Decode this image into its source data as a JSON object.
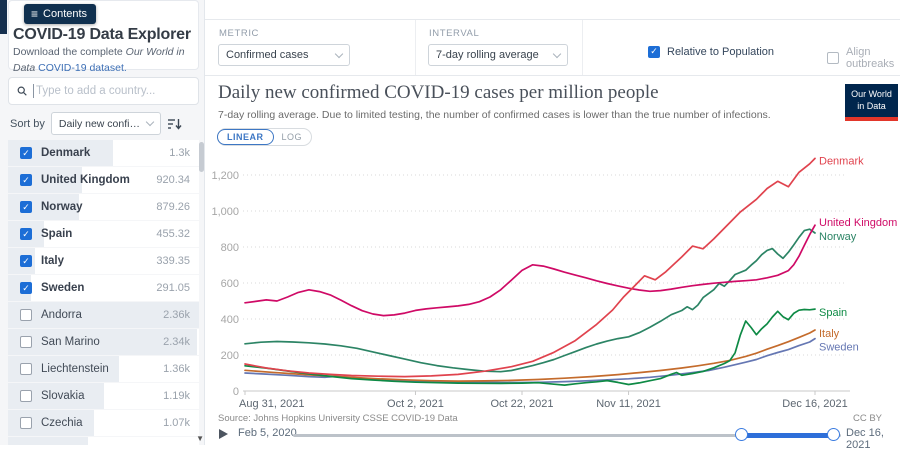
{
  "contents_button": {
    "label": "Contents"
  },
  "sidebar": {
    "title": "COVID-19 Data Explorer",
    "download": {
      "prefix": "Download the complete ",
      "em": "Our World in Data",
      "link": "COVID-19 dataset."
    },
    "search": {
      "placeholder": "Type to add a country..."
    },
    "sort": {
      "label": "Sort by",
      "value": "Daily new confirmed ..."
    },
    "countries": [
      {
        "name": "Denmark",
        "value": "1.3k",
        "checked": true,
        "bar_pct": 55
      },
      {
        "name": "United Kingdom",
        "value": "920.34",
        "checked": true,
        "bar_pct": 39
      },
      {
        "name": "Norway",
        "value": "879.26",
        "checked": true,
        "bar_pct": 37
      },
      {
        "name": "Spain",
        "value": "455.32",
        "checked": true,
        "bar_pct": 19
      },
      {
        "name": "Italy",
        "value": "339.35",
        "checked": true,
        "bar_pct": 14
      },
      {
        "name": "Sweden",
        "value": "291.05",
        "checked": true,
        "bar_pct": 12
      },
      {
        "name": "Andorra",
        "value": "2.36k",
        "checked": false,
        "bar_pct": 100
      },
      {
        "name": "San Marino",
        "value": "2.34k",
        "checked": false,
        "bar_pct": 99
      },
      {
        "name": "Liechtenstein",
        "value": "1.36k",
        "checked": false,
        "bar_pct": 58
      },
      {
        "name": "Slovakia",
        "value": "1.19k",
        "checked": false,
        "bar_pct": 50
      },
      {
        "name": "Czechia",
        "value": "1.07k",
        "checked": false,
        "bar_pct": 45
      },
      {
        "name": "",
        "value": "",
        "checked": false,
        "bar_pct": 42
      }
    ]
  },
  "controls": {
    "metric": {
      "label": "METRIC",
      "value": "Confirmed cases"
    },
    "interval": {
      "label": "INTERVAL",
      "value": "7-day rolling average"
    },
    "relative": {
      "label": "Relative to Population",
      "checked": true
    },
    "align": {
      "label": "Align outbreaks",
      "checked": false
    }
  },
  "chart": {
    "title": "Daily new confirmed COVID-19 cases per million people",
    "subtitle": "7-day rolling average. Due to limited testing, the number of confirmed cases is lower than the true number of infections.",
    "scale": {
      "linear": "LINEAR",
      "log": "LOG"
    },
    "logo": {
      "line1": "Our World",
      "line2": "in Data"
    },
    "source": "Source: Johns Hopkins University CSSE COVID-19 Data",
    "license": "CC BY",
    "timeline": {
      "start": "Feb 5, 2020",
      "end": "Dec 16, 2021"
    }
  },
  "chart_data": {
    "type": "line",
    "title": "Daily new confirmed COVID-19 cases per million people",
    "ylabel": "",
    "xlabel": "",
    "ylim": [
      0,
      1300
    ],
    "yticks": [
      0,
      200,
      400,
      600,
      800,
      1000,
      1200
    ],
    "grid": "dotted-horizontal",
    "legend_position": "line-end-labels",
    "x_range_days": 107,
    "xticks": [
      {
        "day": 0,
        "label": "Aug 31, 2021"
      },
      {
        "day": 32,
        "label": "Oct 2, 2021"
      },
      {
        "day": 52,
        "label": "Oct 22, 2021"
      },
      {
        "day": 72,
        "label": "Nov 11, 2021"
      },
      {
        "day": 107,
        "label": "Dec 16, 2021"
      }
    ],
    "series": [
      {
        "name": "Sweden",
        "color": "#6577b3",
        "label_dy": 9,
        "points": [
          [
            0,
            100
          ],
          [
            4,
            94
          ],
          [
            8,
            87
          ],
          [
            12,
            80
          ],
          [
            15,
            76
          ],
          [
            17,
            81
          ],
          [
            19,
            78
          ],
          [
            22,
            70
          ],
          [
            25,
            65
          ],
          [
            28,
            61
          ],
          [
            32,
            56
          ],
          [
            36,
            53
          ],
          [
            40,
            50
          ],
          [
            44,
            48
          ],
          [
            48,
            47
          ],
          [
            52,
            47
          ],
          [
            56,
            49
          ],
          [
            60,
            52
          ],
          [
            64,
            56
          ],
          [
            68,
            62
          ],
          [
            72,
            68
          ],
          [
            76,
            76
          ],
          [
            80,
            88
          ],
          [
            84,
            102
          ],
          [
            87,
            114
          ],
          [
            90,
            132
          ],
          [
            92,
            146
          ],
          [
            94,
            160
          ],
          [
            96,
            175
          ],
          [
            98,
            196
          ],
          [
            100,
            214
          ],
          [
            102,
            230
          ],
          [
            104,
            252
          ],
          [
            106,
            272
          ],
          [
            107,
            291
          ]
        ]
      },
      {
        "name": "Italy",
        "color": "#c46b2c",
        "label_dy": 4,
        "points": [
          [
            0,
            115
          ],
          [
            5,
            104
          ],
          [
            10,
            94
          ],
          [
            15,
            84
          ],
          [
            20,
            76
          ],
          [
            25,
            68
          ],
          [
            30,
            62
          ],
          [
            35,
            57
          ],
          [
            40,
            55
          ],
          [
            45,
            56
          ],
          [
            50,
            59
          ],
          [
            55,
            64
          ],
          [
            60,
            71
          ],
          [
            65,
            80
          ],
          [
            70,
            91
          ],
          [
            74,
            102
          ],
          [
            78,
            114
          ],
          [
            82,
            128
          ],
          [
            85,
            140
          ],
          [
            88,
            154
          ],
          [
            91,
            170
          ],
          [
            94,
            192
          ],
          [
            96,
            210
          ],
          [
            98,
            232
          ],
          [
            100,
            252
          ],
          [
            102,
            274
          ],
          [
            104,
            298
          ],
          [
            106,
            322
          ],
          [
            107,
            339
          ]
        ]
      },
      {
        "name": "Spain",
        "color": "#0e8a45",
        "label_dy": 4,
        "points": [
          [
            0,
            140
          ],
          [
            4,
            127
          ],
          [
            8,
            111
          ],
          [
            12,
            95
          ],
          [
            16,
            81
          ],
          [
            20,
            69
          ],
          [
            24,
            61
          ],
          [
            28,
            54
          ],
          [
            32,
            49
          ],
          [
            36,
            46
          ],
          [
            40,
            44
          ],
          [
            44,
            43
          ],
          [
            48,
            42
          ],
          [
            52,
            44
          ],
          [
            55,
            46
          ],
          [
            58,
            38
          ],
          [
            60,
            33
          ],
          [
            62,
            40
          ],
          [
            64,
            46
          ],
          [
            66,
            51
          ],
          [
            68,
            58
          ],
          [
            70,
            48
          ],
          [
            72,
            36
          ],
          [
            74,
            45
          ],
          [
            76,
            57
          ],
          [
            78,
            69
          ],
          [
            80,
            93
          ],
          [
            81,
            103
          ],
          [
            82,
            87
          ],
          [
            84,
            97
          ],
          [
            86,
            109
          ],
          [
            88,
            129
          ],
          [
            90,
            153
          ],
          [
            91,
            169
          ],
          [
            92,
            212
          ],
          [
            93,
            312
          ],
          [
            94,
            389
          ],
          [
            95,
            353
          ],
          [
            96,
            313
          ],
          [
            97,
            346
          ],
          [
            98,
            373
          ],
          [
            99,
            411
          ],
          [
            100,
            443
          ],
          [
            101,
            413
          ],
          [
            102,
            396
          ],
          [
            103,
            431
          ],
          [
            104,
            449
          ],
          [
            105,
            453
          ],
          [
            106,
            451
          ],
          [
            107,
            455
          ]
        ]
      },
      {
        "name": "Norway",
        "color": "#2c8465",
        "label_dy": 4,
        "points": [
          [
            0,
            262
          ],
          [
            3,
            271
          ],
          [
            6,
            275
          ],
          [
            9,
            272
          ],
          [
            12,
            268
          ],
          [
            15,
            261
          ],
          [
            18,
            251
          ],
          [
            21,
            237
          ],
          [
            24,
            217
          ],
          [
            27,
            197
          ],
          [
            30,
            177
          ],
          [
            33,
            157
          ],
          [
            36,
            141
          ],
          [
            39,
            129
          ],
          [
            42,
            119
          ],
          [
            45,
            110
          ],
          [
            48,
            107
          ],
          [
            50,
            114
          ],
          [
            52,
            127
          ],
          [
            54,
            141
          ],
          [
            56,
            157
          ],
          [
            58,
            175
          ],
          [
            60,
            197
          ],
          [
            62,
            219
          ],
          [
            64,
            241
          ],
          [
            66,
            261
          ],
          [
            68,
            277
          ],
          [
            70,
            291
          ],
          [
            72,
            301
          ],
          [
            74,
            324
          ],
          [
            76,
            354
          ],
          [
            78,
            387
          ],
          [
            80,
            424
          ],
          [
            82,
            447
          ],
          [
            83,
            468
          ],
          [
            84,
            452
          ],
          [
            85,
            477
          ],
          [
            86,
            519
          ],
          [
            88,
            563
          ],
          [
            89,
            598
          ],
          [
            90,
            582
          ],
          [
            91,
            614
          ],
          [
            92,
            647
          ],
          [
            94,
            671
          ],
          [
            95,
            699
          ],
          [
            96,
            724
          ],
          [
            97,
            757
          ],
          [
            98,
            781
          ],
          [
            99,
            791
          ],
          [
            100,
            761
          ],
          [
            101,
            737
          ],
          [
            102,
            771
          ],
          [
            103,
            811
          ],
          [
            104,
            854
          ],
          [
            105,
            891
          ],
          [
            106,
            899
          ],
          [
            107,
            878
          ]
        ]
      },
      {
        "name": "United Kingdom",
        "color": "#cf0a66",
        "label_dy": -2,
        "points": [
          [
            0,
            490
          ],
          [
            2,
            498
          ],
          [
            4,
            506
          ],
          [
            6,
            500
          ],
          [
            8,
            522
          ],
          [
            10,
            548
          ],
          [
            12,
            562
          ],
          [
            14,
            552
          ],
          [
            16,
            534
          ],
          [
            18,
            505
          ],
          [
            20,
            474
          ],
          [
            22,
            446
          ],
          [
            24,
            428
          ],
          [
            26,
            419
          ],
          [
            28,
            423
          ],
          [
            30,
            433
          ],
          [
            32,
            448
          ],
          [
            34,
            456
          ],
          [
            36,
            462
          ],
          [
            38,
            467
          ],
          [
            40,
            473
          ],
          [
            42,
            481
          ],
          [
            44,
            496
          ],
          [
            46,
            522
          ],
          [
            48,
            562
          ],
          [
            50,
            616
          ],
          [
            52,
            670
          ],
          [
            54,
            701
          ],
          [
            56,
            694
          ],
          [
            58,
            678
          ],
          [
            60,
            660
          ],
          [
            62,
            644
          ],
          [
            64,
            629
          ],
          [
            66,
            612
          ],
          [
            68,
            597
          ],
          [
            70,
            584
          ],
          [
            72,
            571
          ],
          [
            74,
            561
          ],
          [
            76,
            554
          ],
          [
            78,
            558
          ],
          [
            80,
            566
          ],
          [
            82,
            576
          ],
          [
            84,
            585
          ],
          [
            86,
            592
          ],
          [
            88,
            599
          ],
          [
            90,
            604
          ],
          [
            92,
            609
          ],
          [
            94,
            613
          ],
          [
            96,
            618
          ],
          [
            98,
            629
          ],
          [
            100,
            643
          ],
          [
            102,
            669
          ],
          [
            103,
            701
          ],
          [
            104,
            749
          ],
          [
            105,
            809
          ],
          [
            106,
            869
          ],
          [
            107,
            921
          ]
        ]
      },
      {
        "name": "Denmark",
        "color": "#e0434e",
        "label_dy": 3,
        "points": [
          [
            0,
            150
          ],
          [
            4,
            128
          ],
          [
            8,
            112
          ],
          [
            12,
            100
          ],
          [
            16,
            92
          ],
          [
            20,
            86
          ],
          [
            25,
            82
          ],
          [
            30,
            80
          ],
          [
            35,
            84
          ],
          [
            40,
            92
          ],
          [
            45,
            110
          ],
          [
            50,
            135
          ],
          [
            54,
            165
          ],
          [
            58,
            215
          ],
          [
            62,
            280
          ],
          [
            66,
            370
          ],
          [
            69,
            450
          ],
          [
            71,
            520
          ],
          [
            73,
            580
          ],
          [
            75,
            640
          ],
          [
            77,
            618
          ],
          [
            79,
            662
          ],
          [
            82,
            745
          ],
          [
            84,
            805
          ],
          [
            86,
            790
          ],
          [
            88,
            845
          ],
          [
            90,
            905
          ],
          [
            93,
            995
          ],
          [
            96,
            1065
          ],
          [
            98,
            1125
          ],
          [
            100,
            1165
          ],
          [
            102,
            1135
          ],
          [
            104,
            1215
          ],
          [
            106,
            1262
          ],
          [
            107,
            1292
          ]
        ]
      }
    ]
  }
}
